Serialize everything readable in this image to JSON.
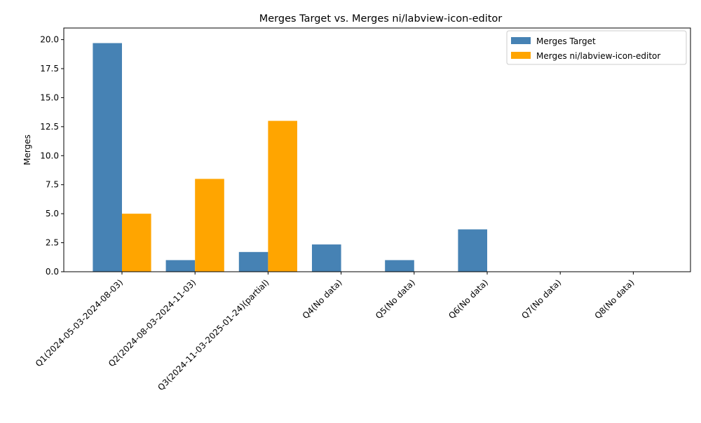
{
  "chart_data": {
    "type": "bar",
    "title": "Merges Target vs. Merges ni/labview-icon-editor",
    "xlabel": "",
    "ylabel": "Merges",
    "ylim": [
      0,
      21
    ],
    "yticks": [
      0.0,
      2.5,
      5.0,
      7.5,
      10.0,
      12.5,
      15.0,
      17.5,
      20.0
    ],
    "ytick_labels": [
      "0.0",
      "2.5",
      "5.0",
      "7.5",
      "10.0",
      "12.5",
      "15.0",
      "17.5",
      "20.0"
    ],
    "categories": [
      "Q1(2024-05-03-2024-08-03)",
      "Q2(2024-08-03-2024-11-03)",
      "Q3(2024-11-03-2025-01-24)(partial)",
      "Q4(No data)",
      "Q5(No data)",
      "Q6(No data)",
      "Q7(No data)",
      "Q8(No data)"
    ],
    "series": [
      {
        "name": "Merges Target",
        "color": "#4682b4",
        "values": [
          19.7,
          1.0,
          1.7,
          2.35,
          1.0,
          3.65,
          0,
          0
        ]
      },
      {
        "name": "Merges ni/labview-icon-editor",
        "color": "#ffa500",
        "values": [
          5,
          8,
          13,
          0,
          0,
          0,
          0,
          0
        ]
      }
    ],
    "grid": false,
    "legend_position": "top-right"
  }
}
